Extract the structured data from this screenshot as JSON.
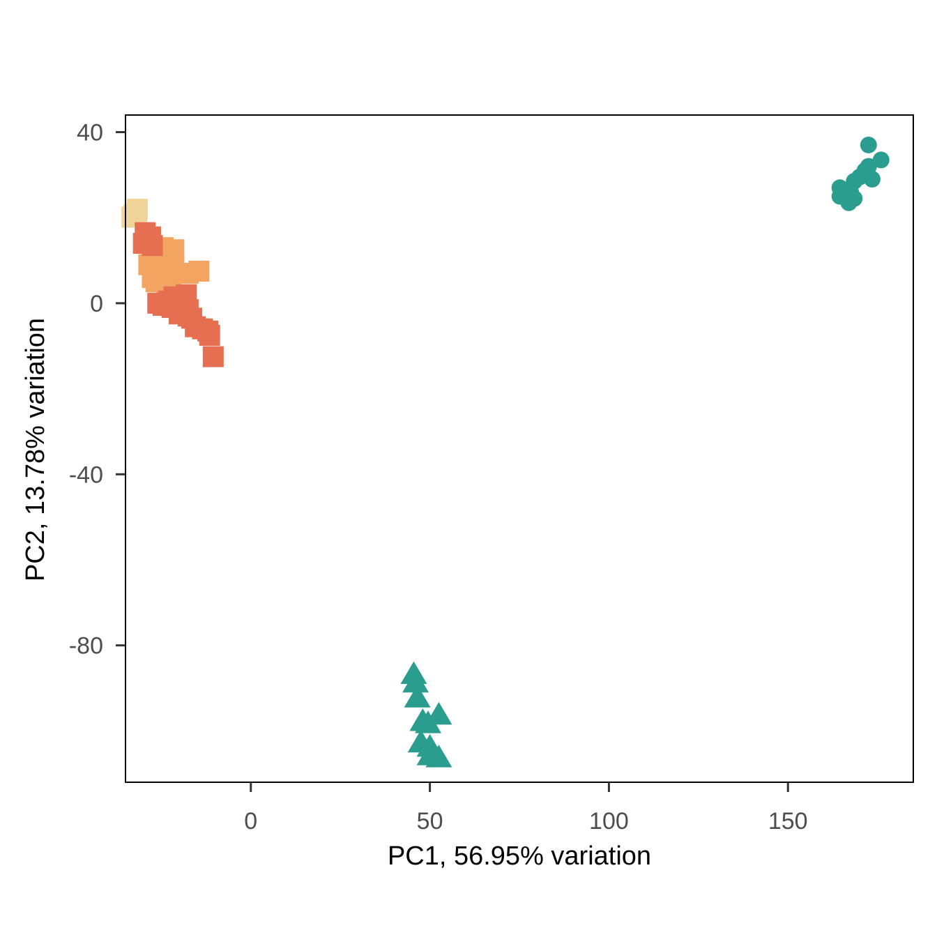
{
  "chart_data": {
    "type": "scatter",
    "title": "",
    "xlabel": "PC1, 56.95% variation",
    "ylabel": "PC2, 13.78% variation",
    "xlim": [
      -35,
      185
    ],
    "ylim": [
      -112,
      44
    ],
    "x_ticks": [
      0,
      50,
      100,
      150
    ],
    "y_ticks": [
      40,
      0,
      -40,
      -80
    ],
    "grid": false,
    "legend": "none",
    "series": [
      {
        "color": "#f0d49a",
        "shape": "square",
        "points": [
          [
            -32.6,
            20.7
          ],
          [
            -31.7,
            22.0
          ],
          [
            -33.2,
            20.1
          ],
          [
            -31.9,
            20.5
          ]
        ]
      },
      {
        "color": "#f2a460",
        "shape": "square",
        "points": [
          [
            -28.5,
            9.0
          ],
          [
            -26.0,
            11.5
          ],
          [
            -24.5,
            13.0
          ],
          [
            -21.5,
            12.5
          ],
          [
            -21.5,
            9.0
          ],
          [
            -25.5,
            8.0
          ],
          [
            -14.5,
            7.5
          ],
          [
            -17.5,
            7.0
          ],
          [
            -27.5,
            6.0
          ],
          [
            -22.5,
            5.0
          ],
          [
            -26.5,
            5.0
          ],
          [
            -23.5,
            4.5
          ]
        ]
      },
      {
        "color": "#e76f51",
        "shape": "square",
        "points": [
          [
            -29.5,
            16.5
          ],
          [
            -30.0,
            14.0
          ],
          [
            -28.0,
            15.5
          ],
          [
            -27.5,
            13.5
          ],
          [
            -21.5,
            1.5
          ],
          [
            -23.0,
            0.5
          ],
          [
            -18.0,
            2.0
          ],
          [
            -22.0,
            -1.0
          ],
          [
            -20.0,
            -2.5
          ],
          [
            -17.5,
            -1.5
          ],
          [
            -16.5,
            -3.5
          ],
          [
            -13.5,
            -6.0
          ],
          [
            -15.5,
            -5.5
          ],
          [
            -17.5,
            -3.0
          ],
          [
            -11.5,
            -7.5
          ],
          [
            -12.0,
            -6.5
          ],
          [
            -10.5,
            -12.5
          ],
          [
            -24.5,
            -0.5
          ],
          [
            -26.0,
            0.0
          ]
        ]
      },
      {
        "color": "#2a9d8f",
        "shape": "circle",
        "points": [
          [
            172.5,
            37.0
          ],
          [
            176.0,
            33.5
          ],
          [
            172.5,
            32.0
          ],
          [
            171.5,
            31.0
          ],
          [
            173.5,
            29.0
          ],
          [
            168.5,
            28.5
          ],
          [
            170.0,
            29.5
          ],
          [
            164.5,
            27.0
          ],
          [
            167.5,
            26.0
          ],
          [
            164.5,
            25.0
          ],
          [
            168.5,
            24.5
          ],
          [
            167.0,
            23.5
          ]
        ]
      },
      {
        "color": "#2a9d8f",
        "shape": "triangle",
        "points": [
          [
            45.5,
            -87.0
          ],
          [
            46.0,
            -89.0
          ],
          [
            46.5,
            -92.5
          ],
          [
            52.5,
            -96.5
          ],
          [
            48.0,
            -98.0
          ],
          [
            49.5,
            -98.5
          ],
          [
            47.5,
            -103.0
          ],
          [
            50.0,
            -104.0
          ],
          [
            52.5,
            -106.5
          ],
          [
            50.0,
            -106.0
          ]
        ]
      }
    ]
  }
}
